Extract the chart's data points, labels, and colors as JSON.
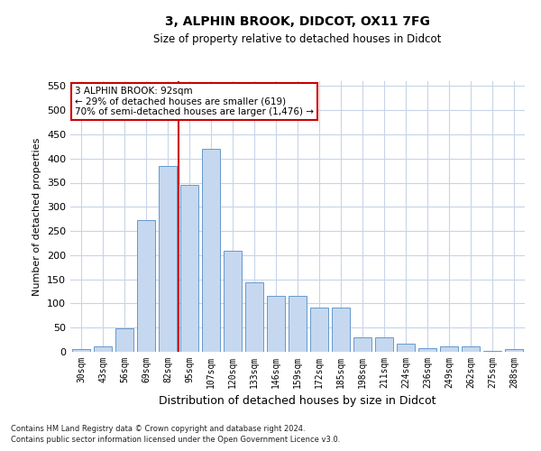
{
  "title_line1": "3, ALPHIN BROOK, DIDCOT, OX11 7FG",
  "title_line2": "Size of property relative to detached houses in Didcot",
  "xlabel": "Distribution of detached houses by size in Didcot",
  "ylabel": "Number of detached properties",
  "categories": [
    "30sqm",
    "43sqm",
    "56sqm",
    "69sqm",
    "82sqm",
    "95sqm",
    "107sqm",
    "120sqm",
    "133sqm",
    "146sqm",
    "159sqm",
    "172sqm",
    "185sqm",
    "198sqm",
    "211sqm",
    "224sqm",
    "236sqm",
    "249sqm",
    "262sqm",
    "275sqm",
    "288sqm"
  ],
  "values": [
    5,
    12,
    49,
    272,
    385,
    345,
    420,
    210,
    143,
    116,
    116,
    92,
    92,
    30,
    30,
    17,
    7,
    12,
    12,
    2,
    5
  ],
  "bar_color": "#c5d8f0",
  "bar_edge_color": "#6699cc",
  "vline_color": "#cc0000",
  "vline_x": 4.5,
  "annotation_text": "3 ALPHIN BROOK: 92sqm\n← 29% of detached houses are smaller (619)\n70% of semi-detached houses are larger (1,476) →",
  "annotation_box_color": "#ffffff",
  "annotation_box_edge": "#cc0000",
  "footer_line1": "Contains HM Land Registry data © Crown copyright and database right 2024.",
  "footer_line2": "Contains public sector information licensed under the Open Government Licence v3.0.",
  "bg_color": "#ffffff",
  "grid_color": "#c8d4e8",
  "ylim": [
    0,
    560
  ],
  "yticks": [
    0,
    50,
    100,
    150,
    200,
    250,
    300,
    350,
    400,
    450,
    500,
    550
  ]
}
